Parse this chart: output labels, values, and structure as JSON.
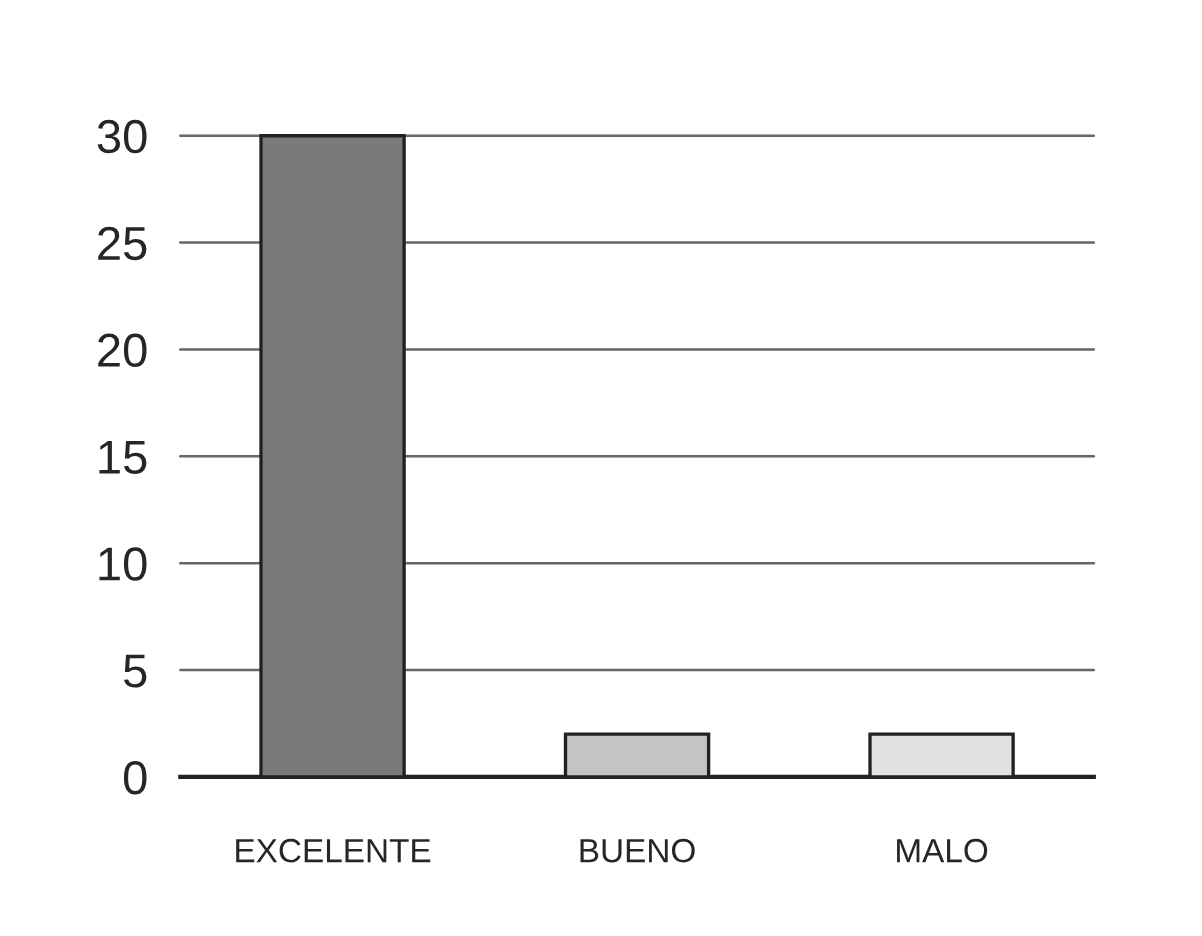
{
  "chart_data": {
    "type": "bar",
    "categories": [
      "EXCELENTE",
      "BUENO",
      "MALO"
    ],
    "values": [
      30,
      2,
      2
    ],
    "colors": [
      "#7a7a7a",
      "#c4c4c4",
      "#e2e2e2"
    ],
    "ylim": [
      0,
      30
    ],
    "yticks": [
      0,
      5,
      10,
      15,
      20,
      25,
      30
    ],
    "grid": "y"
  }
}
